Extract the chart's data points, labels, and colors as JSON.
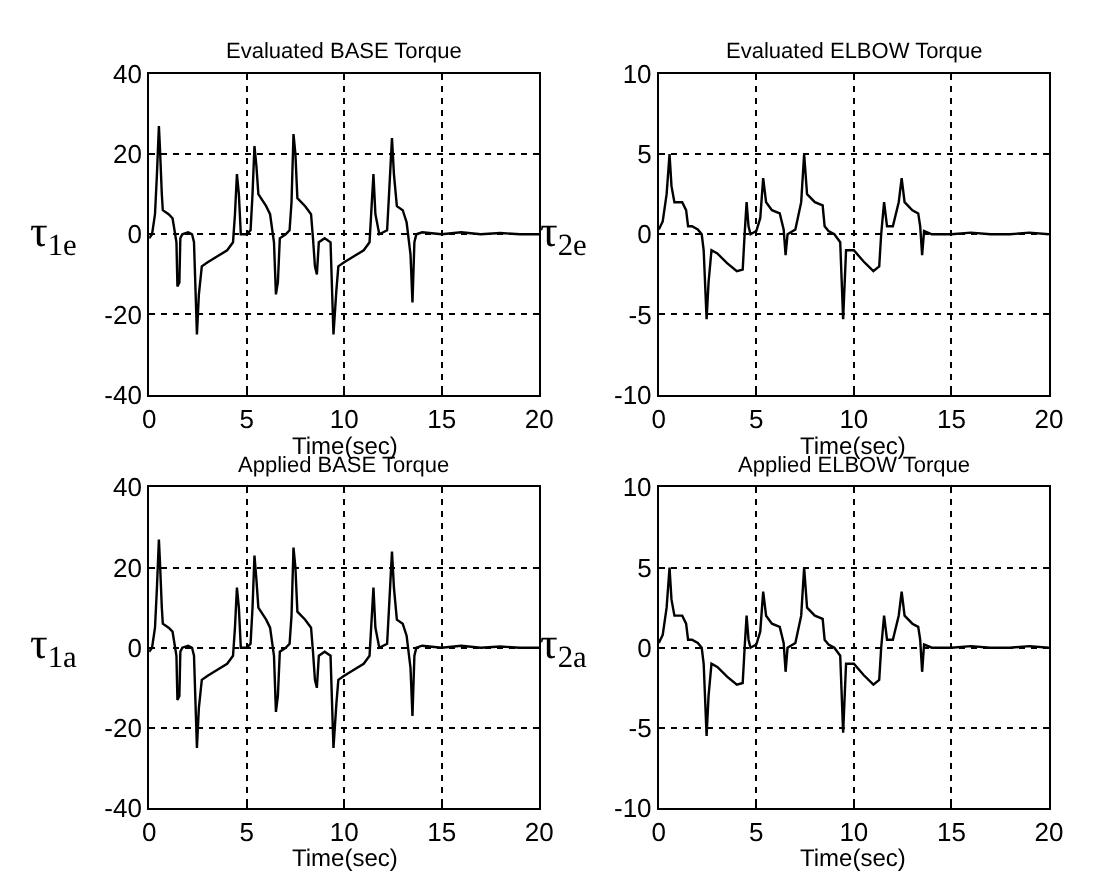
{
  "chart_data": [
    {
      "type": "line",
      "title": "Evaluated BASE Torque",
      "xlabel": "Time(sec)",
      "ylabel": "τ$_{1e}$",
      "xlim": [
        0,
        20
      ],
      "ylim": [
        -40,
        40
      ],
      "xticks": [
        0,
        5,
        10,
        15,
        20
      ],
      "yticks": [
        -40,
        -20,
        0,
        20,
        40
      ],
      "grid": true,
      "x": [
        0,
        0.15,
        0.3,
        0.4,
        0.5,
        0.55,
        0.65,
        0.7,
        1.0,
        1.2,
        1.3,
        1.4,
        1.45,
        1.55,
        1.6,
        1.7,
        2.0,
        2.2,
        2.3,
        2.45,
        2.55,
        2.7,
        3.0,
        3.5,
        4.0,
        4.3,
        4.4,
        4.5,
        4.6,
        4.7,
        5.0,
        5.2,
        5.3,
        5.4,
        5.5,
        5.6,
        6.0,
        6.2,
        6.4,
        6.5,
        6.6,
        6.7,
        7.0,
        7.2,
        7.3,
        7.4,
        7.5,
        7.6,
        8.0,
        8.3,
        8.4,
        8.5,
        8.6,
        8.7,
        9.0,
        9.3,
        9.45,
        9.6,
        9.7,
        10.0,
        10.5,
        11.0,
        11.3,
        11.5,
        11.6,
        11.8,
        12.2,
        12.3,
        12.45,
        12.55,
        12.7,
        13.0,
        13.2,
        13.4,
        13.5,
        13.6,
        13.7,
        14,
        15,
        16,
        17,
        18,
        19,
        20
      ],
      "series": [
        {
          "color": "#000000",
          "values": [
            -1,
            0,
            5,
            15,
            27,
            22,
            10,
            6,
            5,
            4,
            1,
            -2,
            -13,
            -12,
            -1,
            0,
            0.5,
            0,
            -2,
            -25,
            -15,
            -8,
            -7,
            -5.5,
            -4,
            -2,
            5,
            15,
            10,
            0,
            0,
            1,
            10,
            22,
            17,
            10,
            7,
            5,
            -2,
            -15,
            -12,
            -1,
            0,
            1,
            8,
            25,
            20,
            9,
            7,
            5,
            -1,
            -8,
            -10,
            -2,
            -1,
            -2,
            -25,
            -14,
            -8,
            -7,
            -5.5,
            -4,
            -2,
            15,
            5,
            0,
            1,
            10,
            24,
            15,
            7,
            6,
            3,
            -5,
            -17,
            -2,
            0,
            0.5,
            0,
            0.5,
            0,
            0.3,
            0,
            0
          ]
        }
      ]
    },
    {
      "type": "line",
      "title": "Evaluated ELBOW Torque",
      "xlabel": "Time(sec)",
      "ylabel": "τ$_{2e}$",
      "xlim": [
        0,
        20
      ],
      "ylim": [
        -10,
        10
      ],
      "xticks": [
        0,
        5,
        10,
        15,
        20
      ],
      "yticks": [
        -10,
        -5,
        0,
        5,
        10
      ],
      "grid": true,
      "x": [
        0,
        0.2,
        0.4,
        0.55,
        0.65,
        0.8,
        1.2,
        1.4,
        1.5,
        1.7,
        2.0,
        2.2,
        2.3,
        2.45,
        2.55,
        2.7,
        3.0,
        3.5,
        4.0,
        4.3,
        4.4,
        4.5,
        4.6,
        4.7,
        5.0,
        5.2,
        5.35,
        5.5,
        5.8,
        6.2,
        6.4,
        6.5,
        6.6,
        7.0,
        7.3,
        7.45,
        7.6,
        8.0,
        8.4,
        8.5,
        8.7,
        9.0,
        9.3,
        9.45,
        9.6,
        10.0,
        10.5,
        11.0,
        11.3,
        11.4,
        11.55,
        11.7,
        12.0,
        12.3,
        12.45,
        12.6,
        13.0,
        13.3,
        13.4,
        13.5,
        13.6,
        14,
        15,
        16,
        17,
        18,
        19,
        20
      ],
      "series": [
        {
          "color": "#000000",
          "values": [
            0.3,
            0.8,
            2.5,
            5,
            3,
            2,
            2,
            1.5,
            0.5,
            0.5,
            0.3,
            0,
            -1,
            -5.3,
            -3,
            -1,
            -1.2,
            -1.8,
            -2.3,
            -2.2,
            0,
            2,
            0.5,
            0,
            0.2,
            1,
            3.5,
            2,
            1.5,
            1.3,
            0.3,
            -1.3,
            0,
            0.3,
            2,
            5,
            2.5,
            2,
            1.8,
            0.5,
            0.2,
            0,
            -0.5,
            -5.3,
            -1,
            -1,
            -1.7,
            -2.3,
            -2,
            0,
            2,
            0.5,
            0.5,
            2,
            3.5,
            2,
            1.5,
            1.3,
            0.5,
            -1.3,
            0.2,
            0,
            0,
            0.1,
            0,
            0,
            0.1,
            0
          ]
        }
      ]
    },
    {
      "type": "line",
      "title": "Applied BASE Torque",
      "xlabel": "Time(sec)",
      "ylabel": "τ$_{1a}$",
      "xlim": [
        0,
        20
      ],
      "ylim": [
        -40,
        40
      ],
      "xticks": [
        0,
        5,
        10,
        15,
        20
      ],
      "yticks": [
        -40,
        -20,
        0,
        20,
        40
      ],
      "grid": true,
      "x": [
        0,
        0.15,
        0.3,
        0.4,
        0.5,
        0.55,
        0.65,
        0.7,
        1.0,
        1.2,
        1.3,
        1.4,
        1.45,
        1.55,
        1.6,
        1.7,
        2.0,
        2.2,
        2.3,
        2.45,
        2.55,
        2.7,
        3.0,
        3.5,
        4.0,
        4.3,
        4.4,
        4.5,
        4.6,
        4.7,
        5.0,
        5.2,
        5.3,
        5.4,
        5.5,
        5.6,
        6.0,
        6.2,
        6.4,
        6.5,
        6.6,
        6.7,
        7.0,
        7.2,
        7.3,
        7.4,
        7.5,
        7.6,
        8.0,
        8.3,
        8.4,
        8.5,
        8.6,
        8.7,
        9.0,
        9.3,
        9.45,
        9.6,
        9.7,
        10.0,
        10.5,
        11.0,
        11.3,
        11.5,
        11.6,
        11.8,
        12.2,
        12.3,
        12.45,
        12.55,
        12.7,
        13.0,
        13.2,
        13.4,
        13.5,
        13.6,
        13.7,
        14,
        15,
        16,
        17,
        18,
        19,
        20
      ],
      "series": [
        {
          "color": "#000000",
          "values": [
            -1,
            0,
            5,
            15,
            27,
            22,
            10,
            6,
            5,
            4,
            1,
            -2,
            -13,
            -12,
            -1,
            0,
            0.5,
            0,
            -2,
            -25,
            -15,
            -8,
            -7,
            -5.5,
            -4,
            -2,
            5,
            15,
            10,
            0,
            0,
            1,
            10,
            23,
            17,
            10,
            7,
            5,
            -2,
            -16,
            -12,
            -1,
            0,
            1,
            8,
            25,
            20,
            9,
            7,
            5,
            -1,
            -8,
            -10,
            -2,
            -1,
            -2,
            -25,
            -14,
            -8,
            -7,
            -5.5,
            -4,
            -2,
            15,
            5,
            0,
            1,
            10,
            24,
            15,
            7,
            6,
            3,
            -5,
            -17,
            -2,
            0,
            0.5,
            0,
            0.5,
            0,
            0.3,
            0,
            0
          ]
        }
      ]
    },
    {
      "type": "line",
      "title": "Applied ELBOW Torque",
      "xlabel": "Time(sec)",
      "ylabel": "τ$_{2a}$",
      "xlim": [
        0,
        20
      ],
      "ylim": [
        -10,
        10
      ],
      "xticks": [
        0,
        5,
        10,
        15,
        20
      ],
      "yticks": [
        -10,
        -5,
        0,
        5,
        10
      ],
      "grid": true,
      "x": [
        0,
        0.2,
        0.4,
        0.55,
        0.65,
        0.8,
        1.2,
        1.4,
        1.5,
        1.7,
        2.0,
        2.2,
        2.3,
        2.45,
        2.55,
        2.7,
        3.0,
        3.5,
        4.0,
        4.3,
        4.4,
        4.5,
        4.6,
        4.7,
        5.0,
        5.2,
        5.35,
        5.5,
        5.8,
        6.2,
        6.4,
        6.5,
        6.6,
        7.0,
        7.3,
        7.45,
        7.6,
        8.0,
        8.4,
        8.5,
        8.7,
        9.0,
        9.3,
        9.45,
        9.6,
        10.0,
        10.5,
        11.0,
        11.3,
        11.4,
        11.55,
        11.7,
        12.0,
        12.3,
        12.45,
        12.6,
        13.0,
        13.3,
        13.4,
        13.5,
        13.6,
        14,
        15,
        16,
        17,
        18,
        19,
        20
      ],
      "series": [
        {
          "color": "#000000",
          "values": [
            0.3,
            0.8,
            2.5,
            5,
            3,
            2,
            2,
            1.5,
            0.5,
            0.5,
            0.3,
            0,
            -1,
            -5.5,
            -3,
            -1,
            -1.2,
            -1.8,
            -2.3,
            -2.2,
            0,
            2,
            0.5,
            0,
            0.2,
            1,
            3.5,
            2,
            1.5,
            1.3,
            0.3,
            -1.5,
            0,
            0.3,
            2,
            5,
            2.5,
            2,
            1.8,
            0.5,
            0.2,
            0,
            -0.5,
            -5.3,
            -1,
            -1,
            -1.7,
            -2.3,
            -2,
            0,
            2,
            0.5,
            0.5,
            2,
            3.5,
            2,
            1.5,
            1.3,
            0.5,
            -1.5,
            0.2,
            0,
            0,
            0.1,
            0,
            0,
            0.1,
            0
          ]
        }
      ]
    }
  ]
}
